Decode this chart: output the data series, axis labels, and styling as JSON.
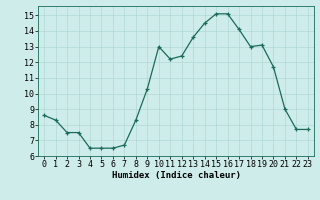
{
  "x": [
    0,
    1,
    2,
    3,
    4,
    5,
    6,
    7,
    8,
    9,
    10,
    11,
    12,
    13,
    14,
    15,
    16,
    17,
    18,
    19,
    20,
    21,
    22,
    23
  ],
  "y": [
    8.6,
    8.3,
    7.5,
    7.5,
    6.5,
    6.5,
    6.5,
    6.7,
    8.3,
    10.3,
    13.0,
    12.2,
    12.4,
    13.6,
    14.5,
    15.1,
    15.1,
    14.1,
    13.0,
    13.1,
    11.7,
    9.0,
    7.7,
    7.7
  ],
  "line_color": "#1a6b5a",
  "marker": "+",
  "bg_color": "#ceecea",
  "grid_color": "#b0d8d5",
  "xlabel": "Humidex (Indice chaleur)",
  "xlim": [
    -0.5,
    23.5
  ],
  "ylim": [
    6,
    15.6
  ],
  "yticks": [
    6,
    7,
    8,
    9,
    10,
    11,
    12,
    13,
    14,
    15
  ],
  "xticks": [
    0,
    1,
    2,
    3,
    4,
    5,
    6,
    7,
    8,
    9,
    10,
    11,
    12,
    13,
    14,
    15,
    16,
    17,
    18,
    19,
    20,
    21,
    22,
    23
  ],
  "xlabel_fontsize": 6.5,
  "tick_fontsize": 6.0,
  "marker_size": 3.0,
  "line_width": 0.9
}
